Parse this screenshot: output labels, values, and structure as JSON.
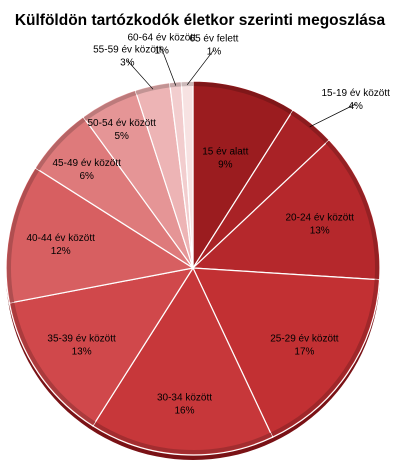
{
  "chart_data": {
    "type": "pie",
    "title": "Külföldön tartózkodók életkor szerinti megoszlása",
    "categories": [
      "15 év alatt",
      "15-19 év között",
      "20-24 év között",
      "25-29 év között",
      "30-34 között",
      "35-39 év között",
      "40-44 év között",
      "45-49 év között",
      "50-54 év között",
      "55-59 év között",
      "60-64 év között",
      "65 év felett"
    ],
    "values": [
      9,
      4,
      13,
      17,
      16,
      13,
      12,
      6,
      5,
      3,
      1,
      1
    ],
    "value_labels": [
      "9%",
      "4%",
      "13%",
      "17%",
      "16%",
      "13%",
      "12%",
      "6%",
      "5%",
      "3%",
      "1%",
      "1%"
    ],
    "colors": [
      "#9b1c1f",
      "#a92226",
      "#b5282c",
      "#c23033",
      "#c7373a",
      "#d0484b",
      "#d75f61",
      "#de7a7b",
      "#e59596",
      "#edb4b5",
      "#f2cdce",
      "#f7e2e2"
    ],
    "legend": "none"
  }
}
